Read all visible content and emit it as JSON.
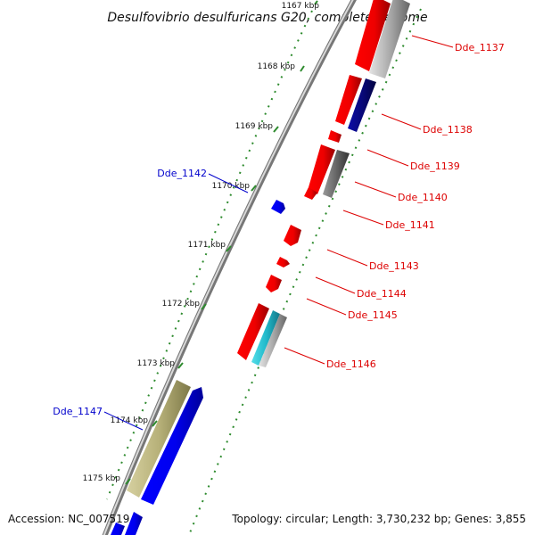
{
  "title": "Desulfovibrio desulfuricans G20, complete genome",
  "accession": "Accession: NC_007519",
  "topology": "Topology: circular; Length: 3,730,232 bp; Genes: 3,855",
  "colors": {
    "red": "#ff0000",
    "blue": "#0000ff",
    "gray": "#888888",
    "navy": "#0a0a80",
    "olive": "#b7b179",
    "cyan": "#22bbcc",
    "tick_green": "#2e8b2e",
    "label_red": "#dd0000",
    "label_blue": "#0000cc"
  },
  "ticks": [
    "1167 kbp",
    "1168 kbp",
    "1169 kbp",
    "1170 kbp",
    "1171 kbp",
    "1172 kbp",
    "1173 kbp",
    "1174 kbp",
    "1175 kbp"
  ],
  "genes": [
    {
      "label": "Dde_1137",
      "color": "red"
    },
    {
      "label": "Dde_1138",
      "color": "red"
    },
    {
      "label": "Dde_1139",
      "color": "red"
    },
    {
      "label": "Dde_1140",
      "color": "red"
    },
    {
      "label": "Dde_1141",
      "color": "red"
    },
    {
      "label": "Dde_1142",
      "color": "blue"
    },
    {
      "label": "Dde_1143",
      "color": "red"
    },
    {
      "label": "Dde_1144",
      "color": "red"
    },
    {
      "label": "Dde_1145",
      "color": "red"
    },
    {
      "label": "Dde_1146",
      "color": "red"
    },
    {
      "label": "Dde_1147",
      "color": "blue"
    }
  ]
}
